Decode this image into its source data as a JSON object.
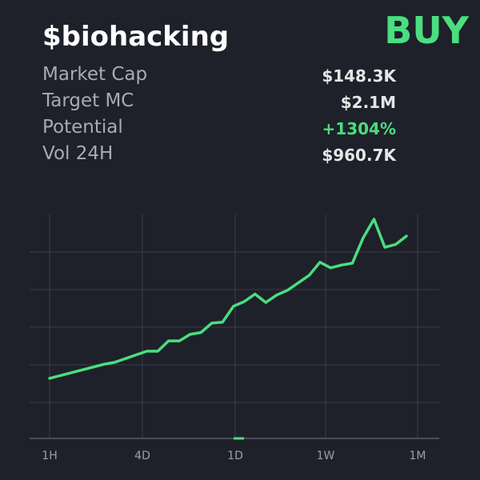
{
  "token": {
    "title": "$biohacking",
    "signal": "BUY"
  },
  "stats": [
    {
      "label": "Market Cap",
      "value": "$148.3K",
      "tone": "neutral"
    },
    {
      "label": "Target MC",
      "value": "$2.1M",
      "tone": "neutral"
    },
    {
      "label": "Potential",
      "value": "+1304%",
      "tone": "positive"
    },
    {
      "label": "Vol 24H",
      "value": "$960.7K",
      "tone": "neutral"
    }
  ],
  "colors": {
    "background": "#1e2129",
    "accent": "#4ade80",
    "grid": "#3a3d45",
    "axis": "#5a5e66",
    "label": "#a8abb2"
  },
  "chart_data": {
    "type": "line",
    "x_tick_labels": [
      "1H",
      "4D",
      "1D",
      "1W",
      "1M"
    ],
    "grid": true,
    "y_axis_labels": false,
    "ylim": [
      0,
      100
    ],
    "series": [
      {
        "values": [
          15,
          16.5,
          18,
          19.5,
          21,
          22.5,
          23.5,
          25.5,
          27.5,
          29.5,
          29.5,
          35,
          35,
          38.5,
          39.5,
          44.5,
          45,
          53.5,
          56,
          60,
          55.5,
          59.5,
          62,
          66,
          70,
          77,
          74,
          75.5,
          76.5,
          90,
          100,
          85,
          86.5,
          91
        ]
      }
    ]
  }
}
